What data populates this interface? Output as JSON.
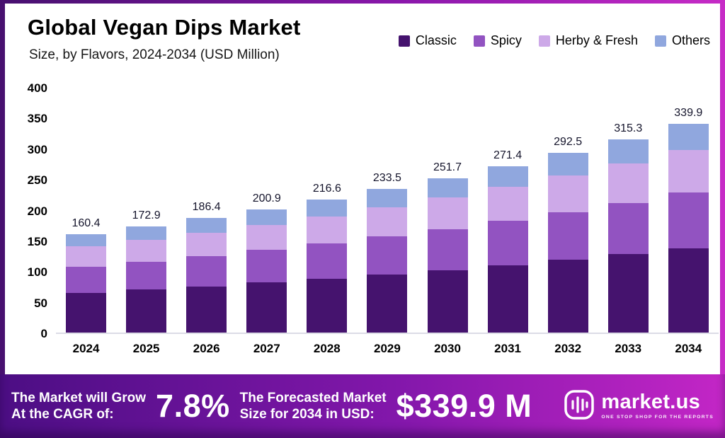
{
  "chart_data": {
    "type": "bar",
    "stacked": true,
    "title": "Global Vegan Dips Market",
    "subtitle": "Size, by Flavors, 2024-2034 (USD Million)",
    "categories": [
      "2024",
      "2025",
      "2026",
      "2027",
      "2028",
      "2029",
      "2030",
      "2031",
      "2032",
      "2033",
      "2034"
    ],
    "series": [
      {
        "name": "Classic",
        "color": "#45136e",
        "values": [
          65.0,
          70.0,
          75.5,
          81.4,
          87.7,
          94.6,
          101.9,
          109.9,
          118.5,
          127.7,
          137.7
        ]
      },
      {
        "name": "Spicy",
        "color": "#9253c1",
        "values": [
          42.5,
          45.8,
          49.4,
          53.2,
          57.4,
          61.9,
          66.7,
          71.9,
          77.5,
          83.6,
          90.1
        ]
      },
      {
        "name": "Herby & Fresh",
        "color": "#cda9e8",
        "values": [
          32.9,
          35.4,
          38.2,
          41.2,
          44.4,
          47.9,
          51.6,
          55.6,
          60.0,
          64.6,
          69.7
        ]
      },
      {
        "name": "Others",
        "color": "#90a7de",
        "values": [
          20.0,
          21.7,
          23.3,
          25.1,
          27.1,
          29.1,
          31.5,
          34.0,
          36.5,
          39.4,
          42.4
        ]
      }
    ],
    "totals": [
      160.4,
      172.9,
      186.4,
      200.9,
      216.6,
      233.5,
      251.7,
      271.4,
      292.5,
      315.3,
      339.9
    ],
    "ylim": [
      0,
      400
    ],
    "ytick_step": 50,
    "grid": false,
    "legend_position": "top-right"
  },
  "footer": {
    "growth_label_line1": "The Market will Grow",
    "growth_label_line2": "At the CAGR of:",
    "cagr_value": "7.8%",
    "forecast_label_line1": "The Forecasted Market",
    "forecast_label_line2": "Size for 2034 in USD:",
    "forecast_value": "$339.9 M",
    "brand_name": "market.us",
    "brand_tagline": "One Stop Shop For The Reports"
  },
  "colors": {
    "frame_gradient_start": "#47106f",
    "frame_gradient_end": "#c62bc6",
    "card_background": "#ffffff",
    "text": "#000000",
    "banner_text": "#ffffff"
  }
}
